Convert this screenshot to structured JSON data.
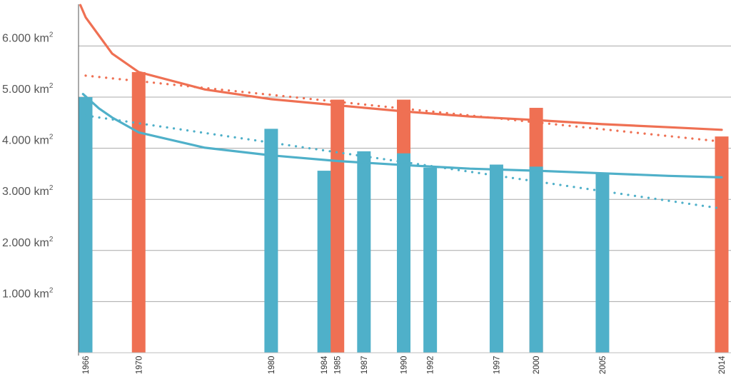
{
  "chart_data": {
    "type": "bar",
    "unit": "km²",
    "title": "",
    "xlabel": "",
    "ylabel": "",
    "ylim": [
      0,
      6800
    ],
    "x_range": [
      1965.5,
      2014.5
    ],
    "y_ticks": [
      {
        "value": 1000,
        "label": "1.000 km",
        "sup": "2"
      },
      {
        "value": 2000,
        "label": "2.000 km",
        "sup": "2"
      },
      {
        "value": 3000,
        "label": "3.000 km",
        "sup": "2"
      },
      {
        "value": 4000,
        "label": "4.000 km",
        "sup": "2"
      },
      {
        "value": 5000,
        "label": "5.000 km",
        "sup": "2"
      },
      {
        "value": 6000,
        "label": "6.000 km",
        "sup": "2"
      }
    ],
    "x_labels": [
      "1966",
      "1970",
      "1980",
      "1984",
      "1985",
      "1987",
      "1990",
      "1992",
      "1997",
      "2000",
      "2005",
      "2014"
    ],
    "colors": {
      "blue": "#4fb0c9",
      "orange": "#ef7053",
      "grid": "#a8a8a8",
      "axis": "#555555"
    },
    "bars": [
      {
        "year": 1966,
        "blue": 5000,
        "orange": null
      },
      {
        "year": 1970,
        "blue": null,
        "orange": 5490
      },
      {
        "year": 1980,
        "blue": 4380,
        "orange": null
      },
      {
        "year": 1984,
        "blue": 3560,
        "orange": null
      },
      {
        "year": 1985,
        "blue": null,
        "orange": 4950
      },
      {
        "year": 1987,
        "blue": 3940,
        "orange": null
      },
      {
        "year": 1990,
        "blue": 3900,
        "orange": 4950
      },
      {
        "year": 1992,
        "blue": 3620,
        "orange": null
      },
      {
        "year": 1997,
        "blue": 3680,
        "orange": null
      },
      {
        "year": 2000,
        "blue": 3640,
        "orange": 4790
      },
      {
        "year": 2005,
        "blue": 3500,
        "orange": null
      },
      {
        "year": 2014,
        "blue": null,
        "orange": 4230
      }
    ],
    "trend_curves": [
      {
        "color": "orange",
        "style": "solid",
        "points": [
          [
            1965.6,
            6800
          ],
          [
            1966,
            6560
          ],
          [
            1968,
            5850
          ],
          [
            1970,
            5490
          ],
          [
            1975,
            5150
          ],
          [
            1980,
            4960
          ],
          [
            1985,
            4840
          ],
          [
            1990,
            4720
          ],
          [
            1995,
            4620
          ],
          [
            2000,
            4550
          ],
          [
            2005,
            4470
          ],
          [
            2010,
            4410
          ],
          [
            2014,
            4360
          ]
        ]
      },
      {
        "color": "blue",
        "style": "solid",
        "points": [
          [
            1965.8,
            5060
          ],
          [
            1967,
            4780
          ],
          [
            1968,
            4600
          ],
          [
            1970,
            4310
          ],
          [
            1975,
            4010
          ],
          [
            1980,
            3860
          ],
          [
            1985,
            3750
          ],
          [
            1990,
            3670
          ],
          [
            1995,
            3600
          ],
          [
            2000,
            3560
          ],
          [
            2005,
            3510
          ],
          [
            2010,
            3460
          ],
          [
            2014,
            3430
          ]
        ]
      },
      {
        "color": "orange",
        "style": "dotted",
        "points": [
          [
            1966,
            5420
          ],
          [
            2014,
            4130
          ]
        ]
      },
      {
        "color": "blue",
        "style": "dotted",
        "points": [
          [
            1966,
            4640
          ],
          [
            2014,
            2820
          ]
        ]
      }
    ]
  }
}
